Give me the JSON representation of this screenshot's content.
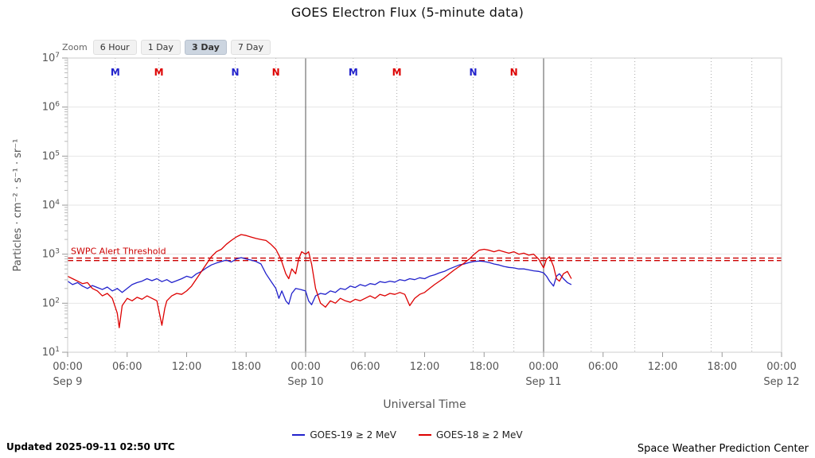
{
  "title": "GOES Electron Flux (5-minute data)",
  "zoom": {
    "label": "Zoom",
    "options": [
      {
        "label": "6 Hour",
        "selected": false
      },
      {
        "label": "1 Day",
        "selected": false
      },
      {
        "label": "3 Day",
        "selected": true
      },
      {
        "label": "7 Day",
        "selected": false
      }
    ]
  },
  "footer": {
    "updated": "Updated 2025-09-11 02:50 UTC",
    "credit": "Space Weather Prediction Center"
  },
  "chart_data": {
    "type": "line",
    "title": "GOES Electron Flux (5-minute data)",
    "xlabel": "Universal Time",
    "ylabel": "Particles · cm⁻² · s⁻¹ · sr⁻¹",
    "y_scale": "log10",
    "y_exponent_range": [
      1,
      7
    ],
    "x_range_hours": [
      0,
      72
    ],
    "grid_color": "#e6e6e6",
    "axis_text_color": "#555555",
    "day_line_color": "#555555",
    "day_line_hours": [
      24,
      48
    ],
    "x_ticks": [
      {
        "hour": 0,
        "label": "00:00"
      },
      {
        "hour": 6,
        "label": "06:00"
      },
      {
        "hour": 12,
        "label": "12:00"
      },
      {
        "hour": 18,
        "label": "18:00"
      },
      {
        "hour": 24,
        "label": "00:00"
      },
      {
        "hour": 30,
        "label": "06:00"
      },
      {
        "hour": 36,
        "label": "12:00"
      },
      {
        "hour": 42,
        "label": "18:00"
      },
      {
        "hour": 48,
        "label": "00:00"
      },
      {
        "hour": 54,
        "label": "06:00"
      },
      {
        "hour": 60,
        "label": "12:00"
      },
      {
        "hour": 66,
        "label": "18:00"
      },
      {
        "hour": 72,
        "label": "00:00"
      }
    ],
    "x_date_labels": [
      {
        "hour": 0,
        "label": "Sep 9"
      },
      {
        "hour": 24,
        "label": "Sep 10"
      },
      {
        "hour": 48,
        "label": "Sep 11"
      },
      {
        "hour": 72,
        "label": "Sep 12"
      }
    ],
    "threshold": {
      "label": "SWPC Alert Threshold",
      "color": "#cc0000",
      "log_values": [
        2.92,
        2.87
      ]
    },
    "event_markers": [
      {
        "hour": 4.8,
        "label": "M",
        "color": "#2222cc"
      },
      {
        "hour": 9.2,
        "label": "M",
        "color": "#dd0000"
      },
      {
        "hour": 16.9,
        "label": "N",
        "color": "#2222cc"
      },
      {
        "hour": 21.0,
        "label": "N",
        "color": "#dd0000"
      },
      {
        "hour": 28.8,
        "label": "M",
        "color": "#2222cc"
      },
      {
        "hour": 33.2,
        "label": "M",
        "color": "#dd0000"
      },
      {
        "hour": 40.9,
        "label": "N",
        "color": "#2222cc"
      },
      {
        "hour": 45.0,
        "label": "N",
        "color": "#dd0000"
      },
      {
        "hour": 52.8,
        "label": "",
        "color": "#999999"
      },
      {
        "hour": 57.2,
        "label": "",
        "color": "#999999"
      },
      {
        "hour": 64.9,
        "label": "",
        "color": "#999999"
      },
      {
        "hour": 69.0,
        "label": "",
        "color": "#999999"
      }
    ],
    "series": [
      {
        "name": "GOES-19 ≥ 2 MeV",
        "color": "#2222cc",
        "points": [
          [
            0,
            2.45
          ],
          [
            0.5,
            2.38
          ],
          [
            1,
            2.42
          ],
          [
            1.5,
            2.35
          ],
          [
            2,
            2.3
          ],
          [
            2.5,
            2.36
          ],
          [
            3,
            2.32
          ],
          [
            3.5,
            2.28
          ],
          [
            4,
            2.33
          ],
          [
            4.5,
            2.25
          ],
          [
            5,
            2.3
          ],
          [
            5.5,
            2.22
          ],
          [
            6,
            2.3
          ],
          [
            6.5,
            2.38
          ],
          [
            7,
            2.42
          ],
          [
            7.5,
            2.45
          ],
          [
            8,
            2.5
          ],
          [
            8.5,
            2.46
          ],
          [
            9,
            2.5
          ],
          [
            9.5,
            2.44
          ],
          [
            10,
            2.48
          ],
          [
            10.5,
            2.42
          ],
          [
            11,
            2.46
          ],
          [
            11.5,
            2.5
          ],
          [
            12,
            2.55
          ],
          [
            12.5,
            2.52
          ],
          [
            13,
            2.6
          ],
          [
            13.5,
            2.65
          ],
          [
            14,
            2.72
          ],
          [
            14.5,
            2.78
          ],
          [
            15,
            2.82
          ],
          [
            15.5,
            2.85
          ],
          [
            16,
            2.88
          ],
          [
            16.5,
            2.84
          ],
          [
            17,
            2.9
          ],
          [
            17.5,
            2.93
          ],
          [
            18,
            2.9
          ],
          [
            18.5,
            2.88
          ],
          [
            19,
            2.85
          ],
          [
            19.5,
            2.8
          ],
          [
            20,
            2.6
          ],
          [
            20.5,
            2.45
          ],
          [
            21,
            2.3
          ],
          [
            21.3,
            2.1
          ],
          [
            21.6,
            2.25
          ],
          [
            22,
            2.05
          ],
          [
            22.3,
            1.98
          ],
          [
            22.6,
            2.2
          ],
          [
            23,
            2.3
          ],
          [
            23.5,
            2.28
          ],
          [
            24,
            2.25
          ],
          [
            24.3,
            2.05
          ],
          [
            24.6,
            1.97
          ],
          [
            25,
            2.15
          ],
          [
            25.5,
            2.2
          ],
          [
            26,
            2.18
          ],
          [
            26.5,
            2.25
          ],
          [
            27,
            2.22
          ],
          [
            27.5,
            2.3
          ],
          [
            28,
            2.28
          ],
          [
            28.5,
            2.35
          ],
          [
            29,
            2.32
          ],
          [
            29.5,
            2.38
          ],
          [
            30,
            2.35
          ],
          [
            30.5,
            2.4
          ],
          [
            31,
            2.38
          ],
          [
            31.5,
            2.44
          ],
          [
            32,
            2.42
          ],
          [
            32.5,
            2.45
          ],
          [
            33,
            2.43
          ],
          [
            33.5,
            2.48
          ],
          [
            34,
            2.46
          ],
          [
            34.5,
            2.5
          ],
          [
            35,
            2.48
          ],
          [
            35.5,
            2.52
          ],
          [
            36,
            2.5
          ],
          [
            36.5,
            2.55
          ],
          [
            37,
            2.58
          ],
          [
            37.5,
            2.62
          ],
          [
            38,
            2.65
          ],
          [
            38.5,
            2.7
          ],
          [
            39,
            2.74
          ],
          [
            39.5,
            2.78
          ],
          [
            40,
            2.8
          ],
          [
            40.5,
            2.83
          ],
          [
            41,
            2.85
          ],
          [
            41.5,
            2.86
          ],
          [
            42,
            2.85
          ],
          [
            42.5,
            2.83
          ],
          [
            43,
            2.8
          ],
          [
            43.5,
            2.78
          ],
          [
            44,
            2.75
          ],
          [
            44.5,
            2.73
          ],
          [
            45,
            2.72
          ],
          [
            45.5,
            2.7
          ],
          [
            46,
            2.7
          ],
          [
            46.5,
            2.68
          ],
          [
            47,
            2.66
          ],
          [
            47.5,
            2.65
          ],
          [
            48,
            2.62
          ],
          [
            48.3,
            2.55
          ],
          [
            48.6,
            2.45
          ],
          [
            49,
            2.35
          ],
          [
            49.3,
            2.55
          ],
          [
            49.6,
            2.6
          ],
          [
            50,
            2.5
          ],
          [
            50.4,
            2.42
          ],
          [
            50.8,
            2.38
          ]
        ]
      },
      {
        "name": "GOES-18 ≥ 2 MeV",
        "color": "#dd0000",
        "points": [
          [
            0,
            2.55
          ],
          [
            0.5,
            2.5
          ],
          [
            1,
            2.45
          ],
          [
            1.5,
            2.4
          ],
          [
            2,
            2.42
          ],
          [
            2.5,
            2.3
          ],
          [
            3,
            2.25
          ],
          [
            3.5,
            2.15
          ],
          [
            4,
            2.2
          ],
          [
            4.5,
            2.1
          ],
          [
            5,
            1.8
          ],
          [
            5.2,
            1.5
          ],
          [
            5.5,
            1.95
          ],
          [
            6,
            2.1
          ],
          [
            6.5,
            2.05
          ],
          [
            7,
            2.12
          ],
          [
            7.5,
            2.08
          ],
          [
            8,
            2.15
          ],
          [
            8.5,
            2.1
          ],
          [
            9,
            2.05
          ],
          [
            9.3,
            1.75
          ],
          [
            9.5,
            1.55
          ],
          [
            9.8,
            1.9
          ],
          [
            10,
            2.05
          ],
          [
            10.5,
            2.15
          ],
          [
            11,
            2.2
          ],
          [
            11.5,
            2.18
          ],
          [
            12,
            2.25
          ],
          [
            12.5,
            2.35
          ],
          [
            13,
            2.5
          ],
          [
            13.5,
            2.65
          ],
          [
            14,
            2.8
          ],
          [
            14.5,
            2.95
          ],
          [
            15,
            3.05
          ],
          [
            15.5,
            3.1
          ],
          [
            16,
            3.2
          ],
          [
            16.5,
            3.28
          ],
          [
            17,
            3.35
          ],
          [
            17.5,
            3.4
          ],
          [
            18,
            3.38
          ],
          [
            18.5,
            3.35
          ],
          [
            19,
            3.32
          ],
          [
            19.5,
            3.3
          ],
          [
            20,
            3.28
          ],
          [
            20.5,
            3.2
          ],
          [
            21,
            3.1
          ],
          [
            21.5,
            2.9
          ],
          [
            22,
            2.6
          ],
          [
            22.3,
            2.5
          ],
          [
            22.6,
            2.7
          ],
          [
            23,
            2.6
          ],
          [
            23.3,
            2.9
          ],
          [
            23.6,
            3.05
          ],
          [
            24,
            3.0
          ],
          [
            24.3,
            3.05
          ],
          [
            24.6,
            2.8
          ],
          [
            25,
            2.3
          ],
          [
            25.5,
            2.0
          ],
          [
            26,
            1.92
          ],
          [
            26.5,
            2.05
          ],
          [
            27,
            2.0
          ],
          [
            27.5,
            2.1
          ],
          [
            28,
            2.05
          ],
          [
            28.5,
            2.02
          ],
          [
            29,
            2.08
          ],
          [
            29.5,
            2.05
          ],
          [
            30,
            2.1
          ],
          [
            30.5,
            2.15
          ],
          [
            31,
            2.1
          ],
          [
            31.5,
            2.18
          ],
          [
            32,
            2.15
          ],
          [
            32.5,
            2.2
          ],
          [
            33,
            2.18
          ],
          [
            33.5,
            2.22
          ],
          [
            34,
            2.18
          ],
          [
            34.5,
            1.95
          ],
          [
            35,
            2.1
          ],
          [
            35.5,
            2.18
          ],
          [
            36,
            2.22
          ],
          [
            36.5,
            2.3
          ],
          [
            37,
            2.38
          ],
          [
            37.5,
            2.45
          ],
          [
            38,
            2.52
          ],
          [
            38.5,
            2.6
          ],
          [
            39,
            2.68
          ],
          [
            39.5,
            2.75
          ],
          [
            40,
            2.82
          ],
          [
            40.5,
            2.9
          ],
          [
            41,
            3.0
          ],
          [
            41.5,
            3.08
          ],
          [
            42,
            3.1
          ],
          [
            42.5,
            3.08
          ],
          [
            43,
            3.05
          ],
          [
            43.5,
            3.08
          ],
          [
            44,
            3.05
          ],
          [
            44.5,
            3.02
          ],
          [
            45,
            3.05
          ],
          [
            45.5,
            3.0
          ],
          [
            46,
            3.02
          ],
          [
            46.5,
            2.98
          ],
          [
            47,
            3.0
          ],
          [
            47.5,
            2.9
          ],
          [
            48,
            2.72
          ],
          [
            48.3,
            2.9
          ],
          [
            48.6,
            2.95
          ],
          [
            49,
            2.75
          ],
          [
            49.3,
            2.5
          ],
          [
            49.6,
            2.45
          ],
          [
            50,
            2.6
          ],
          [
            50.4,
            2.65
          ],
          [
            50.8,
            2.5
          ]
        ]
      }
    ]
  }
}
